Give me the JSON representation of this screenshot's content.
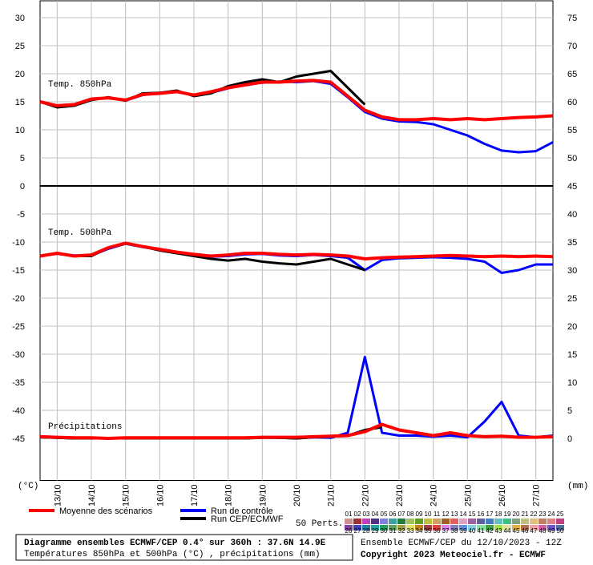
{
  "chart_data": {
    "type": "line",
    "x": [
      0,
      0.5,
      1,
      1.5,
      2,
      2.5,
      3,
      3.5,
      4,
      4.5,
      5,
      5.5,
      6,
      6.5,
      7,
      7.5,
      8,
      8.5,
      9,
      9.5,
      10,
      10.5,
      11,
      11.5,
      12,
      12.5,
      13,
      13.5,
      14,
      14.5,
      15
    ],
    "xlim": [
      0,
      15
    ],
    "xticks": [
      {
        "value": 0.5,
        "label": "13/10"
      },
      {
        "value": 1.5,
        "label": "14/10"
      },
      {
        "value": 2.5,
        "label": "15/10"
      },
      {
        "value": 3.5,
        "label": "16/10"
      },
      {
        "value": 4.5,
        "label": "17/10"
      },
      {
        "value": 5.5,
        "label": "18/10"
      },
      {
        "value": 6.5,
        "label": "19/10"
      },
      {
        "value": 7.5,
        "label": "20/10"
      },
      {
        "value": 8.5,
        "label": "21/10"
      },
      {
        "value": 9.5,
        "label": "22/10"
      },
      {
        "value": 10.5,
        "label": "23/10"
      },
      {
        "value": 11.5,
        "label": "24/10"
      },
      {
        "value": 12.5,
        "label": "25/10"
      },
      {
        "value": 13.5,
        "label": "26/10"
      },
      {
        "value": 14.5,
        "label": "27/10"
      }
    ],
    "ylim": [
      -52.5,
      33
    ],
    "yticks": [
      30,
      25,
      20,
      15,
      10,
      5,
      0,
      -5,
      -10,
      -15,
      -20,
      -25,
      -30,
      -35,
      -40,
      -45
    ],
    "y2lim": [
      -7.5,
      78
    ],
    "y2ticks": [
      75,
      70,
      65,
      60,
      55,
      50,
      45,
      40,
      35,
      30,
      25,
      20,
      15,
      10,
      5,
      0
    ],
    "ylabel": "(°C)",
    "y2label": "(mm)",
    "grid": true,
    "legend": [
      {
        "name": "Moyenne des scénarios",
        "color": "#ff0000"
      },
      {
        "name": "Run de contrôle",
        "color": "#0000ff"
      },
      {
        "name": "Run CEP/ECMWF",
        "color": "#000000"
      }
    ],
    "panels": [
      {
        "label": "Temp. 850hPa",
        "axis": "y",
        "series": [
          {
            "values": [
              15,
              14.3,
              14.5,
              15.5,
              15.7,
              15.3,
              16.3,
              16.5,
              16.8,
              16.2,
              16.8,
              17.5,
              18,
              18.5,
              18.5,
              18.7,
              18.8,
              18.5,
              16,
              13.5,
              12.3,
              11.8,
              11.8,
              12,
              11.8,
              12,
              11.8,
              12,
              12.2,
              12.3,
              12.5
            ]
          },
          {
            "values": [
              15,
              14.2,
              14.4,
              15.4,
              15.8,
              15.2,
              16.2,
              16.6,
              16.9,
              16.1,
              16.6,
              17.4,
              18.2,
              18.4,
              18.6,
              18.5,
              18.7,
              18.2,
              15.8,
              13.2,
              12,
              11.5,
              11.4,
              11,
              10,
              9,
              7.5,
              6.3,
              6,
              6.2,
              7.8
            ]
          },
          {
            "values": [
              15,
              14,
              14.3,
              15.3,
              15.8,
              15.2,
              16.5,
              16.6,
              17,
              16,
              16.5,
              17.8,
              18.5,
              19,
              18.5,
              19.5,
              20,
              20.5,
              17.5,
              14.5,
              null,
              null,
              null,
              null,
              null,
              null,
              null,
              null,
              null,
              null,
              null
            ]
          }
        ]
      },
      {
        "label": "Temp. 500hPa",
        "axis": "y",
        "series": [
          {
            "values": [
              -12.5,
              -12,
              -12.5,
              -12.3,
              -11,
              -10.2,
              -10.8,
              -11.3,
              -11.8,
              -12.2,
              -12.5,
              -12.3,
              -12,
              -12,
              -12.2,
              -12.3,
              -12.2,
              -12.3,
              -12.5,
              -13,
              -12.8,
              -12.7,
              -12.6,
              -12.5,
              -12.4,
              -12.5,
              -12.6,
              -12.5,
              -12.6,
              -12.5,
              -12.6
            ]
          },
          {
            "values": [
              -12.5,
              -12.1,
              -12.4,
              -12.4,
              -11.2,
              -10.3,
              -10.9,
              -11.4,
              -11.9,
              -12.3,
              -12.6,
              -12.5,
              -12.2,
              -12.1,
              -12.4,
              -12.5,
              -12.3,
              -12.5,
              -12.8,
              -15,
              -13.2,
              -12.9,
              -12.8,
              -12.7,
              -12.8,
              -13,
              -13.5,
              -15.5,
              -15,
              -14,
              -14
            ]
          },
          {
            "values": [
              -12.5,
              -12,
              -12.5,
              -12.5,
              -11,
              -10.2,
              -10.8,
              -11.5,
              -12,
              -12.5,
              -13,
              -13.3,
              -13,
              -13.5,
              -13.8,
              -14,
              -13.5,
              -13,
              -14,
              -15,
              null,
              null,
              null,
              null,
              null,
              null,
              null,
              null,
              null,
              null,
              null
            ]
          }
        ]
      },
      {
        "label": "Précipitations",
        "axis": "y2",
        "series": [
          {
            "values": [
              0.3,
              0.2,
              0.1,
              0.1,
              0,
              0.1,
              0.1,
              0.1,
              0.1,
              0.1,
              0.1,
              0.1,
              0.1,
              0.2,
              0.2,
              0.2,
              0.3,
              0.4,
              0.5,
              1.2,
              2.5,
              1.5,
              1,
              0.5,
              1,
              0.5,
              0.3,
              0.4,
              0.2,
              0.2,
              0.3
            ]
          },
          {
            "values": [
              0.2,
              0.1,
              0,
              0,
              0,
              0,
              0,
              0,
              0,
              0,
              0,
              0,
              0,
              0.2,
              0.1,
              0,
              0.2,
              0.1,
              1,
              14.5,
              1,
              0.5,
              0.5,
              0.3,
              0.5,
              0.2,
              3,
              6.5,
              0.5,
              0.2,
              0.5
            ]
          },
          {
            "values": [
              0.2,
              0.1,
              0,
              0,
              0,
              0,
              0,
              0,
              0,
              0,
              0,
              0,
              0,
              0.1,
              0.1,
              0,
              0.2,
              0.3,
              0.5,
              1.5,
              2,
              null,
              null,
              null,
              null,
              null,
              null,
              null,
              null,
              null,
              null
            ]
          }
        ]
      }
    ],
    "perturbations_label": "50 Perts.",
    "perturbations": [
      {
        "name": "01",
        "color": "#d09090"
      },
      {
        "name": "02",
        "color": "#a03030"
      },
      {
        "name": "03",
        "color": "#c040c0"
      },
      {
        "name": "04",
        "color": "#503080"
      },
      {
        "name": "05",
        "color": "#8080e0"
      },
      {
        "name": "06",
        "color": "#40a0a0"
      },
      {
        "name": "07",
        "color": "#208040"
      },
      {
        "name": "08",
        "color": "#a0c060"
      },
      {
        "name": "09",
        "color": "#60a020"
      },
      {
        "name": "10",
        "color": "#c0c040"
      },
      {
        "name": "11",
        "color": "#d0a060"
      },
      {
        "name": "12",
        "color": "#a06020"
      },
      {
        "name": "13",
        "color": "#e06060"
      },
      {
        "name": "14",
        "color": "#e0a0c0"
      },
      {
        "name": "15",
        "color": "#a060a0"
      },
      {
        "name": "16",
        "color": "#6060a0"
      },
      {
        "name": "17",
        "color": "#4080c0"
      },
      {
        "name": "18",
        "color": "#60c0c0"
      },
      {
        "name": "19",
        "color": "#40c080"
      },
      {
        "name": "20",
        "color": "#80a080"
      },
      {
        "name": "21",
        "color": "#c0c080"
      },
      {
        "name": "22",
        "color": "#e0c080"
      },
      {
        "name": "23",
        "color": "#c08060"
      },
      {
        "name": "24",
        "color": "#e08080"
      },
      {
        "name": "25",
        "color": "#c04080"
      },
      {
        "name": "26",
        "color": "#8040a0"
      },
      {
        "name": "27",
        "color": "#4040c0"
      },
      {
        "name": "28",
        "color": "#2080a0"
      },
      {
        "name": "29",
        "color": "#20a0a0"
      },
      {
        "name": "30",
        "color": "#20a060"
      },
      {
        "name": "31",
        "color": "#60a060"
      },
      {
        "name": "32",
        "color": "#a0a040"
      },
      {
        "name": "33",
        "color": "#e0e060"
      },
      {
        "name": "34",
        "color": "#c08020"
      },
      {
        "name": "35",
        "color": "#a04040"
      },
      {
        "name": "36",
        "color": "#e04040"
      },
      {
        "name": "37",
        "color": "#e080e0"
      },
      {
        "name": "38",
        "color": "#8080c0"
      },
      {
        "name": "39",
        "color": "#6090e0"
      },
      {
        "name": "40",
        "color": "#80d0e0"
      },
      {
        "name": "41",
        "color": "#80e0a0"
      },
      {
        "name": "42",
        "color": "#40a040"
      },
      {
        "name": "43",
        "color": "#a0e040"
      },
      {
        "name": "44",
        "color": "#e0e0a0"
      },
      {
        "name": "45",
        "color": "#e0b040"
      },
      {
        "name": "46",
        "color": "#b07050"
      },
      {
        "name": "47",
        "color": "#f0a0a0"
      },
      {
        "name": "48",
        "color": "#d060a0"
      },
      {
        "name": "49",
        "color": "#7050d0"
      },
      {
        "name": "50",
        "color": "#5070a0"
      }
    ],
    "footer": {
      "title": "Diagramme ensembles ECMWF/CEP 0.4° sur 360h : 37.6N 14.9E",
      "subtitle": "Températures 850hPa et 500hPa (°C) , précipitations (mm)",
      "run": "Ensemble ECMWF/CEP du 12/10/2023 - 12Z",
      "copyright": "Copyright 2023 Meteociel.fr - ECMWF"
    }
  }
}
